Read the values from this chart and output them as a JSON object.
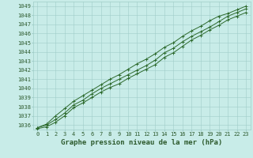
{
  "xlabel": "Graphe pression niveau de la mer (hPa)",
  "x": [
    0,
    1,
    2,
    3,
    4,
    5,
    6,
    7,
    8,
    9,
    10,
    11,
    12,
    13,
    14,
    15,
    16,
    17,
    18,
    19,
    20,
    21,
    22,
    23
  ],
  "y_low": [
    1035.6,
    1035.8,
    1036.3,
    1037.0,
    1037.9,
    1038.4,
    1039.0,
    1039.6,
    1040.1,
    1040.5,
    1041.1,
    1041.6,
    1042.1,
    1042.6,
    1043.4,
    1043.9,
    1044.6,
    1045.3,
    1045.8,
    1046.4,
    1046.9,
    1047.5,
    1047.9,
    1048.3
  ],
  "y_mid": [
    1035.7,
    1036.0,
    1036.6,
    1037.3,
    1038.2,
    1038.7,
    1039.4,
    1040.0,
    1040.5,
    1041.0,
    1041.5,
    1042.0,
    1042.5,
    1043.1,
    1043.9,
    1044.4,
    1045.1,
    1045.7,
    1046.2,
    1046.7,
    1047.3,
    1047.9,
    1048.3,
    1048.7
  ],
  "y_high": [
    1035.7,
    1036.1,
    1037.0,
    1037.8,
    1038.6,
    1039.2,
    1039.8,
    1040.4,
    1041.0,
    1041.5,
    1042.1,
    1042.7,
    1043.2,
    1043.8,
    1044.5,
    1045.0,
    1045.7,
    1046.3,
    1046.8,
    1047.4,
    1047.9,
    1048.2,
    1048.6,
    1049.0
  ],
  "ylim": [
    1035.5,
    1049.5
  ],
  "yticks": [
    1036,
    1037,
    1038,
    1039,
    1040,
    1041,
    1042,
    1043,
    1044,
    1045,
    1046,
    1047,
    1048,
    1049
  ],
  "line_color": "#2d6a2d",
  "bg_color": "#c8ece8",
  "grid_color": "#a0cdc8",
  "tick_label_color": "#2d5a2d",
  "xlabel_color": "#2d5a2d",
  "xlabel_fontsize": 6.5,
  "tick_fontsize": 5.0
}
